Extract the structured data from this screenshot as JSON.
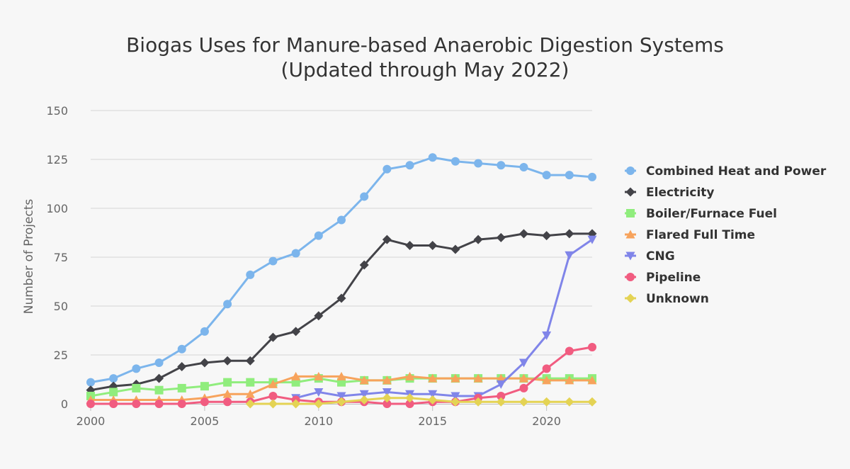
{
  "chart_data": {
    "type": "line",
    "title": "Biogas Uses for Manure-based Anaerobic Digestion Systems",
    "subtitle": "(Updated through May 2022)",
    "xlabel": "",
    "ylabel": "Number of Projects",
    "x": [
      2000,
      2001,
      2002,
      2003,
      2004,
      2005,
      2006,
      2007,
      2008,
      2009,
      2010,
      2011,
      2012,
      2013,
      2014,
      2015,
      2016,
      2017,
      2018,
      2019,
      2020,
      2021,
      2022
    ],
    "xticks": [
      2000,
      2005,
      2010,
      2015,
      2020
    ],
    "yticks": [
      0,
      25,
      50,
      75,
      100,
      125,
      150
    ],
    "xlim": [
      2000,
      2022
    ],
    "ylim": [
      0,
      150
    ],
    "grid": "horizontal",
    "legend": "right",
    "series": [
      {
        "name": "Combined Heat and Power",
        "color": "#7cb5ec",
        "marker": "circle",
        "values": [
          11,
          13,
          18,
          21,
          28,
          37,
          51,
          66,
          73,
          77,
          86,
          94,
          106,
          120,
          122,
          126,
          124,
          123,
          122,
          121,
          117,
          117,
          116
        ]
      },
      {
        "name": "Electricity",
        "color": "#434348",
        "marker": "diamond",
        "values": [
          7,
          9,
          10,
          13,
          19,
          21,
          22,
          22,
          34,
          37,
          45,
          54,
          71,
          84,
          81,
          81,
          79,
          84,
          85,
          87,
          86,
          87,
          87
        ]
      },
      {
        "name": "Boiler/Furnace Fuel",
        "color": "#90ed7d",
        "marker": "square",
        "values": [
          4,
          6,
          8,
          7,
          8,
          9,
          11,
          11,
          11,
          11,
          13,
          11,
          12,
          12,
          13,
          13,
          13,
          13,
          13,
          13,
          13,
          13,
          13
        ]
      },
      {
        "name": "Flared Full Time",
        "color": "#f7a35c",
        "marker": "triangle",
        "values": [
          2,
          2,
          2,
          2,
          2,
          3,
          5,
          5,
          10,
          14,
          14,
          14,
          12,
          12,
          14,
          13,
          13,
          13,
          13,
          13,
          12,
          12,
          12
        ]
      },
      {
        "name": "CNG",
        "color": "#8085e9",
        "marker": "triangle-down",
        "values": [
          null,
          null,
          null,
          null,
          null,
          null,
          null,
          null,
          null,
          3,
          6,
          4,
          5,
          6,
          5,
          5,
          4,
          4,
          10,
          21,
          35,
          76,
          84
        ]
      },
      {
        "name": "Pipeline",
        "color": "#f15c80",
        "marker": "circle",
        "values": [
          0,
          0,
          0,
          0,
          0,
          1,
          1,
          1,
          4,
          2,
          1,
          1,
          1,
          0,
          0,
          1,
          1,
          3,
          4,
          8,
          18,
          27,
          29
        ]
      },
      {
        "name": "Unknown",
        "color": "#e4d354",
        "marker": "diamond",
        "values": [
          null,
          null,
          null,
          null,
          null,
          null,
          null,
          0,
          0,
          0,
          0,
          1,
          2,
          3,
          3,
          2,
          1,
          1,
          1,
          1,
          1,
          1,
          1
        ]
      }
    ]
  }
}
